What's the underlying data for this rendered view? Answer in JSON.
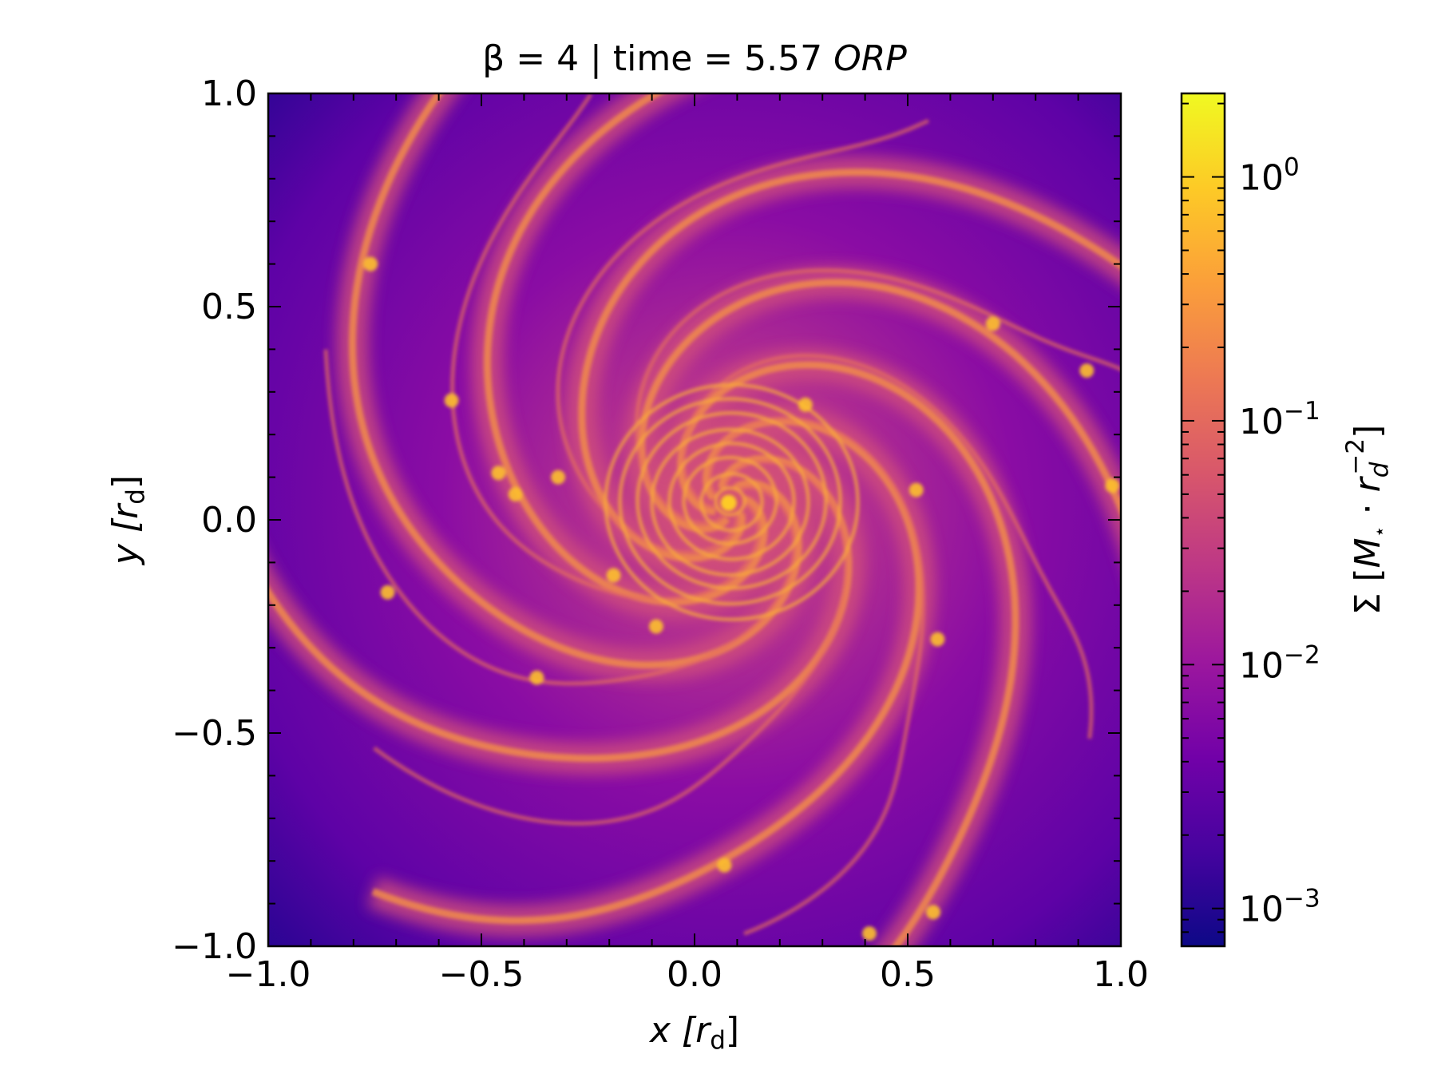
{
  "chart_data": {
    "type": "heatmap",
    "title": "β = 4 | time = 5.57 ORP",
    "title_parts": {
      "prefix": "β = 4 | time = 5.57 ",
      "unit": "ORP"
    },
    "xlabel": {
      "var": "x",
      "unit": "[r",
      "sub": "d",
      "close": "]"
    },
    "ylabel": {
      "var": "y",
      "unit": "[r",
      "sub": "d",
      "close": "]"
    },
    "xlim": [
      -1.0,
      1.0
    ],
    "ylim": [
      -1.0,
      1.0
    ],
    "xticks": [
      -1.0,
      -0.5,
      0.0,
      0.5,
      1.0
    ],
    "xtick_labels": [
      "−1.0",
      "−0.5",
      "0.0",
      "0.5",
      "1.0"
    ],
    "yticks": [
      -1.0,
      -0.5,
      0.0,
      0.5,
      1.0
    ],
    "ytick_labels": [
      "−1.0",
      "−0.5",
      "0.0",
      "0.5",
      "1.0"
    ],
    "colorbar": {
      "scale": "log",
      "colormap": "plasma",
      "range": [
        0.0007,
        2.2
      ],
      "ticks": [
        0.001,
        0.01,
        0.1,
        1
      ],
      "tick_labels": [
        {
          "base": "10",
          "exp": "−3"
        },
        {
          "base": "10",
          "exp": "−2"
        },
        {
          "base": "10",
          "exp": "−1"
        },
        {
          "base": "10",
          "exp": "0"
        }
      ],
      "label": "Σ [M⋆ · r_d^−2]",
      "label_parts": {
        "sym": "Σ [",
        "m": "M",
        "star": "⋆",
        "dot": " · ",
        "r": "r",
        "sub": "d",
        "sup": "−2",
        "close": "]"
      }
    },
    "field": {
      "description_free": true,
      "center": [
        0.08,
        0.04
      ],
      "arms": 7,
      "clumps": [
        [
          -0.57,
          0.28
        ],
        [
          -0.46,
          0.11
        ],
        [
          -0.42,
          0.06
        ],
        [
          -0.32,
          0.1
        ],
        [
          -0.76,
          0.6
        ],
        [
          -0.72,
          -0.17
        ],
        [
          -0.37,
          -0.37
        ],
        [
          -0.19,
          -0.13
        ],
        [
          0.57,
          -0.28
        ],
        [
          0.52,
          0.07
        ],
        [
          0.7,
          0.46
        ],
        [
          0.92,
          0.35
        ],
        [
          0.98,
          0.08
        ],
        [
          0.07,
          -0.81
        ],
        [
          0.56,
          -0.92
        ],
        [
          0.41,
          -0.97
        ],
        [
          0.26,
          0.27
        ],
        [
          -0.09,
          -0.25
        ]
      ]
    },
    "colors": {
      "plasma": [
        "#0d0887",
        "#46039f",
        "#7201a8",
        "#9c179e",
        "#bd3786",
        "#d8576b",
        "#ed7953",
        "#fb9f3a",
        "#fdca26",
        "#f0f921"
      ]
    }
  }
}
